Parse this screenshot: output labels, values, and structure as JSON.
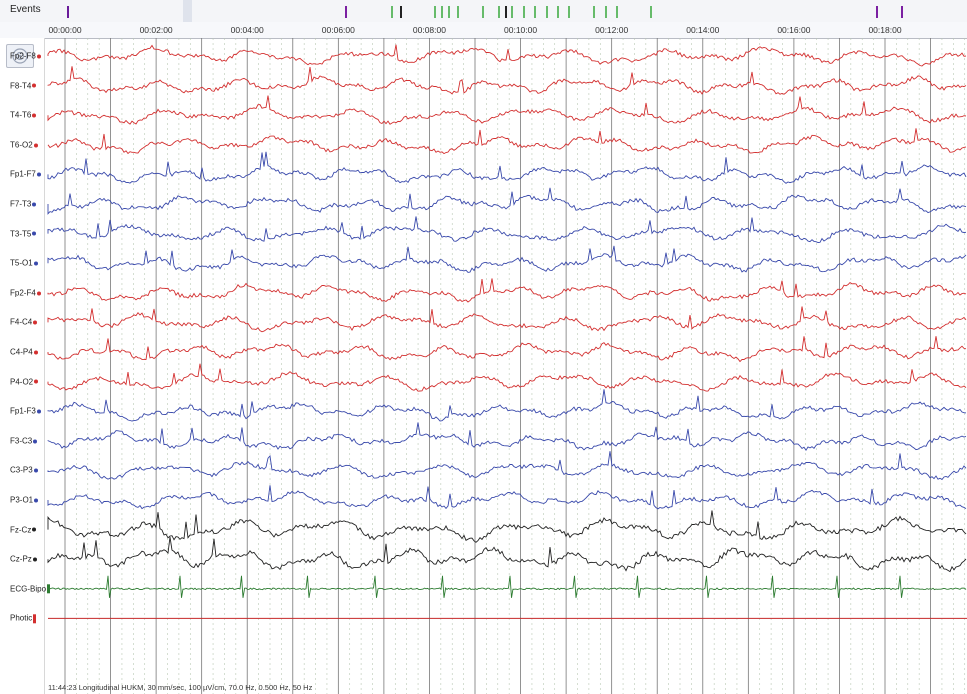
{
  "events": {
    "label": "Events",
    "markers": [
      {
        "t": 0.05,
        "color": "#6a1b9a"
      },
      {
        "t": 2.6,
        "color": "#dfe3ec",
        "wide": true
      },
      {
        "t": 6.15,
        "color": "#7b1fa2"
      },
      {
        "t": 7.15,
        "color": "#66bb6a"
      },
      {
        "t": 7.35,
        "color": "#222222"
      },
      {
        "t": 8.1,
        "color": "#66bb6a"
      },
      {
        "t": 8.25,
        "color": "#66bb6a"
      },
      {
        "t": 8.4,
        "color": "#66bb6a"
      },
      {
        "t": 8.6,
        "color": "#66bb6a"
      },
      {
        "t": 9.15,
        "color": "#66bb6a"
      },
      {
        "t": 9.5,
        "color": "#66bb6a"
      },
      {
        "t": 9.65,
        "color": "#222222"
      },
      {
        "t": 9.8,
        "color": "#66bb6a"
      },
      {
        "t": 10.05,
        "color": "#66bb6a"
      },
      {
        "t": 10.3,
        "color": "#66bb6a"
      },
      {
        "t": 10.55,
        "color": "#66bb6a"
      },
      {
        "t": 10.8,
        "color": "#66bb6a"
      },
      {
        "t": 11.05,
        "color": "#66bb6a"
      },
      {
        "t": 11.6,
        "color": "#66bb6a"
      },
      {
        "t": 11.85,
        "color": "#66bb6a"
      },
      {
        "t": 12.1,
        "color": "#66bb6a"
      },
      {
        "t": 12.85,
        "color": "#66bb6a"
      },
      {
        "t": 17.8,
        "color": "#7b1fa2"
      },
      {
        "t": 18.35,
        "color": "#7b1fa2"
      }
    ]
  },
  "timeline": {
    "labels": [
      "00:00:00",
      "00:02:00",
      "00:04:00",
      "00:06:00",
      "00:08:00",
      "00:10:00",
      "00:12:00",
      "00:14:00",
      "00:16:00",
      "00:18:00"
    ]
  },
  "channels": [
    {
      "name": "Fp2-F8",
      "color": "#d32f2f",
      "dot": "#d32f2f"
    },
    {
      "name": "F8-T4",
      "color": "#d32f2f",
      "dot": "#d32f2f"
    },
    {
      "name": "T4-T6",
      "color": "#d32f2f",
      "dot": "#d32f2f"
    },
    {
      "name": "T6-O2",
      "color": "#d32f2f",
      "dot": "#d32f2f"
    },
    {
      "name": "Fp1-F7",
      "color": "#3949ab",
      "dot": "#3949ab"
    },
    {
      "name": "F7-T3",
      "color": "#3949ab",
      "dot": "#3949ab"
    },
    {
      "name": "T3-T5",
      "color": "#3949ab",
      "dot": "#3949ab"
    },
    {
      "name": "T5-O1",
      "color": "#3949ab",
      "dot": "#3949ab"
    },
    {
      "name": "Fp2-F4",
      "color": "#d32f2f",
      "dot": "#d32f2f"
    },
    {
      "name": "F4-C4",
      "color": "#d32f2f",
      "dot": "#d32f2f"
    },
    {
      "name": "C4-P4",
      "color": "#d32f2f",
      "dot": "#d32f2f"
    },
    {
      "name": "P4-O2",
      "color": "#d32f2f",
      "dot": "#d32f2f"
    },
    {
      "name": "Fp1-F3",
      "color": "#3949ab",
      "dot": "#3949ab"
    },
    {
      "name": "F3-C3",
      "color": "#3949ab",
      "dot": "#3949ab"
    },
    {
      "name": "C3-P3",
      "color": "#3949ab",
      "dot": "#3949ab"
    },
    {
      "name": "P3-O1",
      "color": "#3949ab",
      "dot": "#3949ab"
    },
    {
      "name": "Fz-Cz",
      "color": "#222222",
      "dot": "#222222"
    },
    {
      "name": "Cz-Pz",
      "color": "#222222",
      "dot": "#222222"
    },
    {
      "name": "ECG-Bipo",
      "color": "#2e7d32",
      "dot": "#2e7d32"
    },
    {
      "name": "Photic",
      "color": "#c62828",
      "dot": "#d32f2f"
    }
  ],
  "status": {
    "text": "11:44:23 Longitudinal HUKM, 30 mm/sec, 100 µV/cm, 70.0 Hz, 0.500 Hz, 50 Hz"
  },
  "icons": {
    "montage": "target-icon"
  }
}
